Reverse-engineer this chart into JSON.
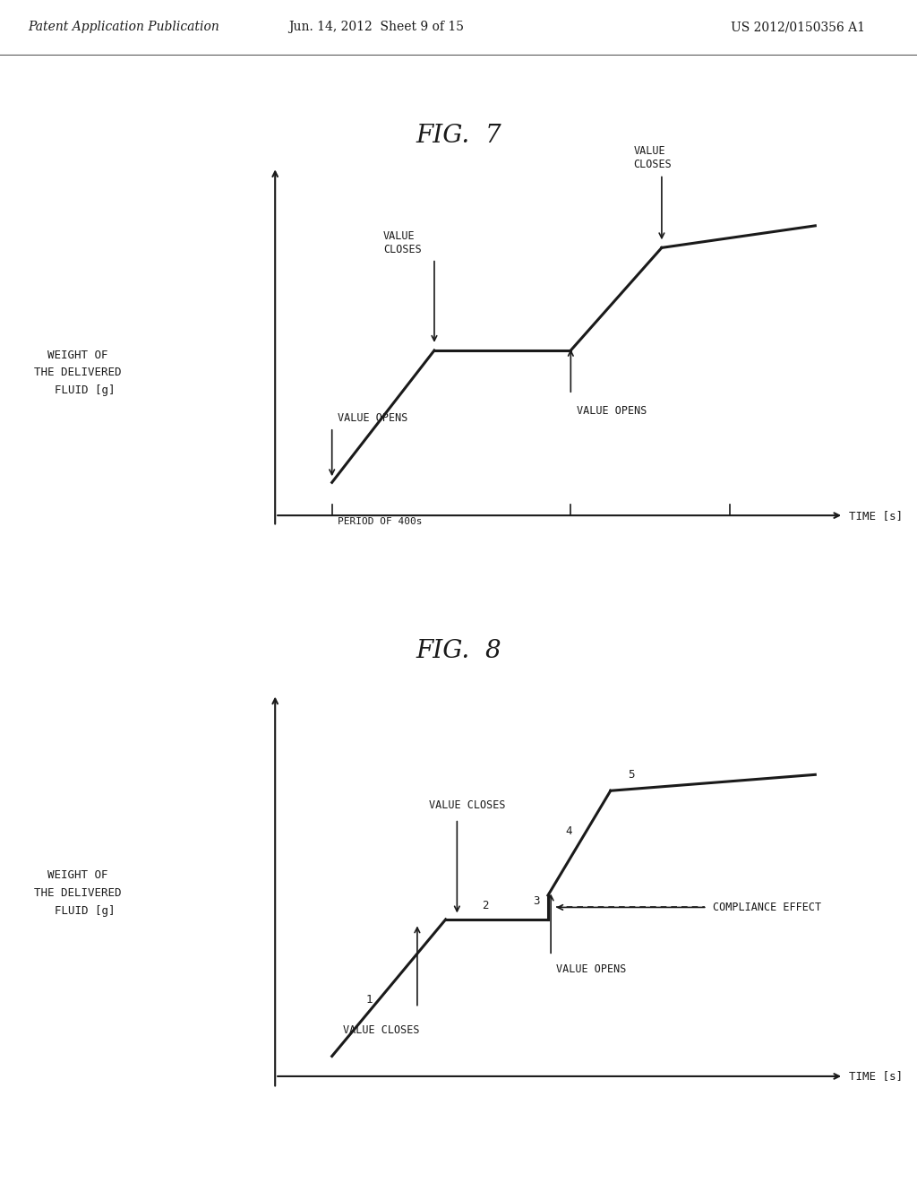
{
  "bg_color": "#ffffff",
  "header_text": "Patent Application Publication",
  "header_date": "Jun. 14, 2012  Sheet 9 of 15",
  "header_patent": "US 2012/0150356 A1",
  "fig7_title": "FIG.  7",
  "fig7_ylabel_line1": "WEIGHT OF",
  "fig7_ylabel_line2": "THE DELIVERED",
  "fig7_ylabel_line3": "  FLUID [g]",
  "fig7_xlabel": "TIME [s]",
  "fig7_period_label": "PERIOD OF 400s",
  "fig8_title": "FIG.  8",
  "fig8_ylabel_line1": "WEIGHT OF",
  "fig8_ylabel_line2": "THE DELIVERED",
  "fig8_ylabel_line3": "  FLUID [g]",
  "fig8_xlabel": "TIME [s]",
  "line_color": "#1a1a1a",
  "text_color": "#1a1a1a",
  "axis_color": "#1a1a1a"
}
